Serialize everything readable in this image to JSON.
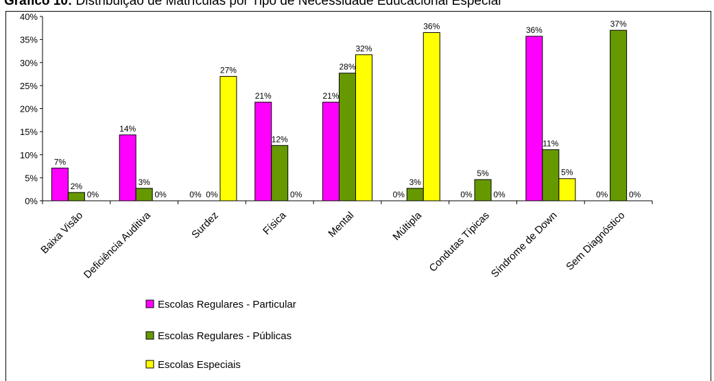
{
  "title_bold": "Gráfico 10:",
  "title_rest": " Distribuição de Matrículas por Tipo de Necessidade Educacional Especial",
  "chart_data": {
    "type": "bar",
    "title": "Gráfico 10: Distribuição de Matrículas por Tipo de Necessidade Educacional Especial",
    "categories": [
      "Baixa Visão",
      "Deficiência Auditiva",
      "Surdez",
      "Física",
      "Mental",
      "Múltipla",
      "Condutas Típicas",
      "Síndrome de Down",
      "Sem Diagnóstico"
    ],
    "series": [
      {
        "name": "Escolas Regulares - Particular",
        "color": "#ff00ff",
        "values": [
          7.1,
          14.3,
          0,
          21.4,
          21.4,
          0,
          0,
          35.7,
          0
        ],
        "labels": [
          "7%",
          "14%",
          "0%",
          "21%",
          "21%",
          "0%",
          "0%",
          "36%",
          "0%"
        ]
      },
      {
        "name": "Escolas Regulares - Públicas",
        "color": "#669900",
        "values": [
          1.8,
          2.7,
          0,
          12.0,
          27.7,
          2.7,
          4.6,
          11.1,
          37.0
        ],
        "labels": [
          "2%",
          "3%",
          "0%",
          "12%",
          "28%",
          "3%",
          "5%",
          "11%",
          "37%"
        ]
      },
      {
        "name": "Escolas Especiais",
        "color": "#ffff00",
        "values": [
          0,
          0,
          27.0,
          0,
          31.7,
          36.5,
          0,
          4.8,
          0
        ],
        "labels": [
          "0%",
          "0%",
          "27%",
          "0%",
          "32%",
          "36%",
          "0%",
          "5%",
          "0%"
        ]
      }
    ],
    "yticks": [
      "0%",
      "5%",
      "10%",
      "15%",
      "20%",
      "25%",
      "30%",
      "35%",
      "40%"
    ],
    "ylim": [
      0,
      40
    ],
    "xlabel": "",
    "ylabel": "",
    "grid": false,
    "legend_position": "bottom-left"
  }
}
